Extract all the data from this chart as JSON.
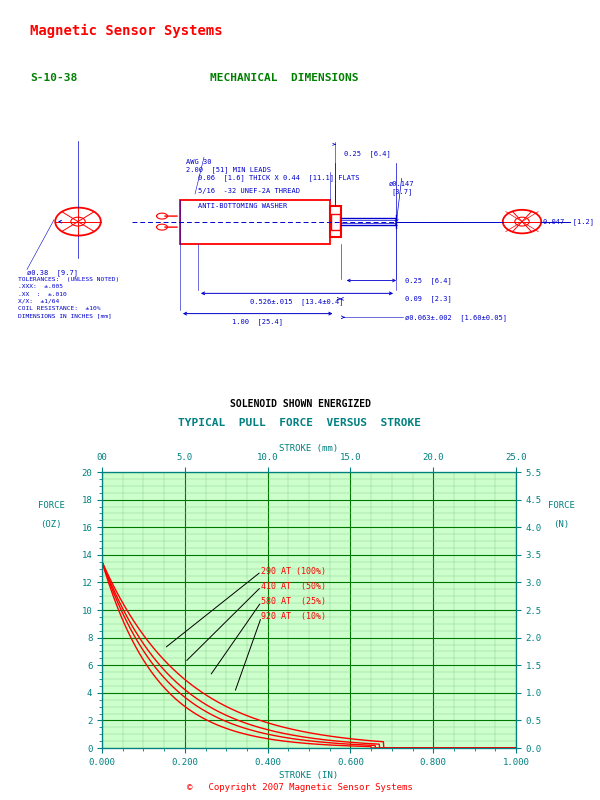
{
  "title_company": "Magnetic Sensor Systems",
  "title_company_color": "#FF0000",
  "part_number": "S-10-38",
  "mech_dim_title": "MECHANICAL  DIMENSIONS",
  "green_color": "#008000",
  "drawing_color": "#0000CC",
  "red_color": "#FF0000",
  "black_color": "#000000",
  "teal_color": "#008080",
  "light_green_color": "#90EE90",
  "solenoid_energized": "SOLENOID SHOWN ENERGIZED",
  "graph_title": "TYPICAL  PULL  FORCE  VERSUS  STROKE",
  "graph_title_color": "#008080",
  "xlabel": "STROKE (IN)",
  "ylabel_left": "FORCE\n(OZ)",
  "ylabel_right": "FORCE\n(N)",
  "xlabel_top": "STROKE (mm)",
  "x_ticks_in": [
    0.0,
    0.2,
    0.4,
    0.6,
    0.8,
    1.0
  ],
  "x_ticks_mm": [
    "00",
    "5.0",
    "10.0",
    "15.0",
    "20.0",
    "25.0"
  ],
  "y_ticks_left": [
    0,
    2,
    4,
    6,
    8,
    10,
    12,
    14,
    16,
    18,
    20
  ],
  "curve_labels": [
    "290 AT (100%)",
    "410 AT  (50%)",
    "580 AT  (25%)",
    "920 AT  (10%)"
  ],
  "tolerances_text": "TOLERANCES:  (UNLESS NOTED)\n.XXX:  ±.005\n.XX  :  ±.010\nX/X:  ±1/64\nCOIL RESISTANCE:  ±10%\nDIMENSIONS IN INCHES [mm]",
  "copyright": "©   Copyright 2007 Magnetic Sensor Systems",
  "copyright_color": "#FF0000",
  "dim_top_overall": "0.526±.015  [13.4±0.4]",
  "dim_d1": "0.25  [6.4]",
  "dim_d2": "0.09  [2.3]",
  "dim_d3": "ø0.063±.002  [1.60±0.05]",
  "dim_body_length": "1.00  [25.4]",
  "dim_wire_dia": "ø0.38  [9.7]",
  "dim_end_dia": "ø0.147\n[3.7]",
  "dim_flat": "0.047  [1.2]",
  "dim_bottom": "0.25  [6.4]",
  "dim_thick_flat": "0.06  [1.6] THICK X 0.44  [11.1] FLATS",
  "dim_thread": "5/16  -32 UNEF-2A THREAD",
  "dim_washer": "ANTI-BOTTOMING WASHER",
  "dim_awg": "AWG 30\n2.00  [51] MIN LEADS"
}
